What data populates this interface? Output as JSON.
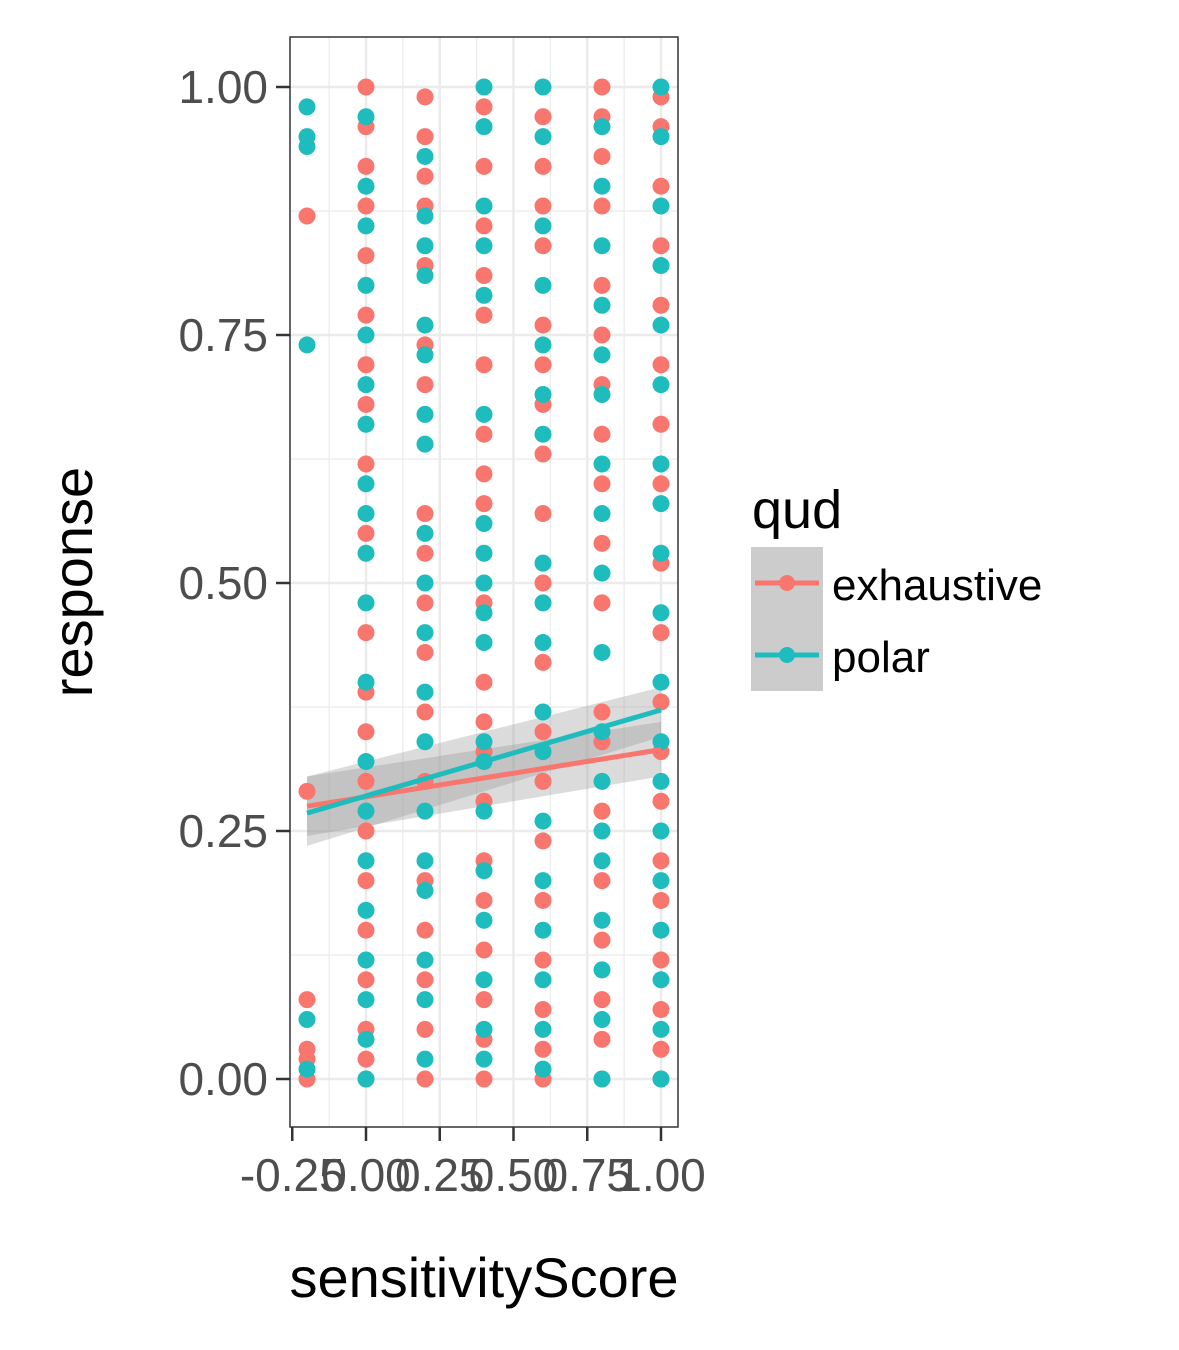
{
  "chart_data": {
    "type": "scatter",
    "title": "",
    "xlabel": "sensitivityScore",
    "ylabel": "response",
    "xlim": [
      -0.26,
      1.05
    ],
    "ylim": [
      -0.05,
      1.05
    ],
    "x_ticks": [
      "-0.25",
      "0.00",
      "0.25",
      "0.50",
      "0.75",
      "1.00"
    ],
    "y_ticks": [
      "0.00",
      "0.25",
      "0.50",
      "0.75",
      "1.00"
    ],
    "grid": true,
    "legend_position": "right",
    "legend": {
      "title": "qud",
      "entries": [
        "exhaustive",
        "polar"
      ]
    },
    "colors": {
      "exhaustive": "#F8766D",
      "polar": "#1FBCBE",
      "band": "#999999",
      "panel_border": "#333333",
      "grid": "#EBEBEB"
    },
    "series": [
      {
        "name": "exhaustive",
        "points": [
          [
            -0.2,
            0.0
          ],
          [
            -0.2,
            0.02
          ],
          [
            -0.2,
            0.03
          ],
          [
            -0.2,
            0.08
          ],
          [
            -0.2,
            0.29
          ],
          [
            -0.2,
            0.87
          ],
          [
            0.0,
            0.0
          ],
          [
            0.0,
            0.02
          ],
          [
            0.0,
            0.05
          ],
          [
            0.0,
            0.1
          ],
          [
            0.0,
            0.15
          ],
          [
            0.0,
            0.2
          ],
          [
            0.0,
            0.25
          ],
          [
            0.0,
            0.3
          ],
          [
            0.0,
            0.35
          ],
          [
            0.0,
            0.39
          ],
          [
            0.0,
            0.45
          ],
          [
            0.0,
            0.55
          ],
          [
            0.0,
            0.62
          ],
          [
            0.0,
            0.68
          ],
          [
            0.0,
            0.72
          ],
          [
            0.0,
            0.77
          ],
          [
            0.0,
            0.83
          ],
          [
            0.0,
            0.88
          ],
          [
            0.0,
            0.92
          ],
          [
            0.0,
            0.96
          ],
          [
            0.0,
            1.0
          ],
          [
            0.2,
            0.0
          ],
          [
            0.2,
            0.05
          ],
          [
            0.2,
            0.1
          ],
          [
            0.2,
            0.15
          ],
          [
            0.2,
            0.2
          ],
          [
            0.2,
            0.3
          ],
          [
            0.2,
            0.37
          ],
          [
            0.2,
            0.43
          ],
          [
            0.2,
            0.48
          ],
          [
            0.2,
            0.53
          ],
          [
            0.2,
            0.57
          ],
          [
            0.2,
            0.7
          ],
          [
            0.2,
            0.74
          ],
          [
            0.2,
            0.82
          ],
          [
            0.2,
            0.88
          ],
          [
            0.2,
            0.91
          ],
          [
            0.2,
            0.95
          ],
          [
            0.2,
            0.99
          ],
          [
            0.4,
            0.0
          ],
          [
            0.4,
            0.04
          ],
          [
            0.4,
            0.08
          ],
          [
            0.4,
            0.13
          ],
          [
            0.4,
            0.18
          ],
          [
            0.4,
            0.22
          ],
          [
            0.4,
            0.28
          ],
          [
            0.4,
            0.33
          ],
          [
            0.4,
            0.36
          ],
          [
            0.4,
            0.4
          ],
          [
            0.4,
            0.48
          ],
          [
            0.4,
            0.58
          ],
          [
            0.4,
            0.61
          ],
          [
            0.4,
            0.65
          ],
          [
            0.4,
            0.72
          ],
          [
            0.4,
            0.77
          ],
          [
            0.4,
            0.81
          ],
          [
            0.4,
            0.86
          ],
          [
            0.4,
            0.92
          ],
          [
            0.4,
            0.98
          ],
          [
            0.6,
            0.0
          ],
          [
            0.6,
            0.03
          ],
          [
            0.6,
            0.07
          ],
          [
            0.6,
            0.12
          ],
          [
            0.6,
            0.18
          ],
          [
            0.6,
            0.24
          ],
          [
            0.6,
            0.3
          ],
          [
            0.6,
            0.35
          ],
          [
            0.6,
            0.42
          ],
          [
            0.6,
            0.5
          ],
          [
            0.6,
            0.57
          ],
          [
            0.6,
            0.63
          ],
          [
            0.6,
            0.68
          ],
          [
            0.6,
            0.72
          ],
          [
            0.6,
            0.76
          ],
          [
            0.6,
            0.84
          ],
          [
            0.6,
            0.88
          ],
          [
            0.6,
            0.92
          ],
          [
            0.6,
            0.97
          ],
          [
            0.8,
            0.0
          ],
          [
            0.8,
            0.04
          ],
          [
            0.8,
            0.08
          ],
          [
            0.8,
            0.14
          ],
          [
            0.8,
            0.2
          ],
          [
            0.8,
            0.27
          ],
          [
            0.8,
            0.34
          ],
          [
            0.8,
            0.37
          ],
          [
            0.8,
            0.48
          ],
          [
            0.8,
            0.54
          ],
          [
            0.8,
            0.6
          ],
          [
            0.8,
            0.65
          ],
          [
            0.8,
            0.7
          ],
          [
            0.8,
            0.75
          ],
          [
            0.8,
            0.8
          ],
          [
            0.8,
            0.88
          ],
          [
            0.8,
            0.93
          ],
          [
            0.8,
            0.97
          ],
          [
            0.8,
            1.0
          ],
          [
            1.0,
            0.0
          ],
          [
            1.0,
            0.03
          ],
          [
            1.0,
            0.07
          ],
          [
            1.0,
            0.12
          ],
          [
            1.0,
            0.18
          ],
          [
            1.0,
            0.22
          ],
          [
            1.0,
            0.28
          ],
          [
            1.0,
            0.33
          ],
          [
            1.0,
            0.38
          ],
          [
            1.0,
            0.45
          ],
          [
            1.0,
            0.52
          ],
          [
            1.0,
            0.6
          ],
          [
            1.0,
            0.66
          ],
          [
            1.0,
            0.72
          ],
          [
            1.0,
            0.78
          ],
          [
            1.0,
            0.84
          ],
          [
            1.0,
            0.9
          ],
          [
            1.0,
            0.96
          ],
          [
            1.0,
            0.99
          ]
        ],
        "trend": {
          "x": [
            -0.2,
            1.0
          ],
          "y": [
            0.275,
            0.332
          ]
        },
        "band": {
          "lower": [
            0.245,
            0.305
          ],
          "upper": [
            0.305,
            0.36
          ]
        }
      },
      {
        "name": "polar",
        "points": [
          [
            -0.2,
            0.01
          ],
          [
            -0.2,
            0.06
          ],
          [
            -0.2,
            0.74
          ],
          [
            -0.2,
            0.94
          ],
          [
            -0.2,
            0.95
          ],
          [
            -0.2,
            0.98
          ],
          [
            0.0,
            0.0
          ],
          [
            0.0,
            0.04
          ],
          [
            0.0,
            0.08
          ],
          [
            0.0,
            0.12
          ],
          [
            0.0,
            0.17
          ],
          [
            0.0,
            0.22
          ],
          [
            0.0,
            0.27
          ],
          [
            0.0,
            0.32
          ],
          [
            0.0,
            0.4
          ],
          [
            0.0,
            0.48
          ],
          [
            0.0,
            0.53
          ],
          [
            0.0,
            0.57
          ],
          [
            0.0,
            0.6
          ],
          [
            0.0,
            0.66
          ],
          [
            0.0,
            0.7
          ],
          [
            0.0,
            0.75
          ],
          [
            0.0,
            0.8
          ],
          [
            0.0,
            0.86
          ],
          [
            0.0,
            0.9
          ],
          [
            0.0,
            0.97
          ],
          [
            0.2,
            0.02
          ],
          [
            0.2,
            0.08
          ],
          [
            0.2,
            0.12
          ],
          [
            0.2,
            0.19
          ],
          [
            0.2,
            0.22
          ],
          [
            0.2,
            0.27
          ],
          [
            0.2,
            0.34
          ],
          [
            0.2,
            0.39
          ],
          [
            0.2,
            0.45
          ],
          [
            0.2,
            0.5
          ],
          [
            0.2,
            0.55
          ],
          [
            0.2,
            0.64
          ],
          [
            0.2,
            0.67
          ],
          [
            0.2,
            0.73
          ],
          [
            0.2,
            0.76
          ],
          [
            0.2,
            0.81
          ],
          [
            0.2,
            0.84
          ],
          [
            0.2,
            0.87
          ],
          [
            0.2,
            0.93
          ],
          [
            0.4,
            0.02
          ],
          [
            0.4,
            0.05
          ],
          [
            0.4,
            0.1
          ],
          [
            0.4,
            0.16
          ],
          [
            0.4,
            0.21
          ],
          [
            0.4,
            0.27
          ],
          [
            0.4,
            0.32
          ],
          [
            0.4,
            0.34
          ],
          [
            0.4,
            0.44
          ],
          [
            0.4,
            0.47
          ],
          [
            0.4,
            0.5
          ],
          [
            0.4,
            0.53
          ],
          [
            0.4,
            0.56
          ],
          [
            0.4,
            0.67
          ],
          [
            0.4,
            0.79
          ],
          [
            0.4,
            0.84
          ],
          [
            0.4,
            0.88
          ],
          [
            0.4,
            0.96
          ],
          [
            0.4,
            1.0
          ],
          [
            0.6,
            0.01
          ],
          [
            0.6,
            0.05
          ],
          [
            0.6,
            0.1
          ],
          [
            0.6,
            0.15
          ],
          [
            0.6,
            0.2
          ],
          [
            0.6,
            0.26
          ],
          [
            0.6,
            0.33
          ],
          [
            0.6,
            0.37
          ],
          [
            0.6,
            0.44
          ],
          [
            0.6,
            0.48
          ],
          [
            0.6,
            0.52
          ],
          [
            0.6,
            0.65
          ],
          [
            0.6,
            0.69
          ],
          [
            0.6,
            0.74
          ],
          [
            0.6,
            0.8
          ],
          [
            0.6,
            0.86
          ],
          [
            0.6,
            0.95
          ],
          [
            0.6,
            1.0
          ],
          [
            0.8,
            0.0
          ],
          [
            0.8,
            0.06
          ],
          [
            0.8,
            0.11
          ],
          [
            0.8,
            0.16
          ],
          [
            0.8,
            0.22
          ],
          [
            0.8,
            0.25
          ],
          [
            0.8,
            0.3
          ],
          [
            0.8,
            0.35
          ],
          [
            0.8,
            0.43
          ],
          [
            0.8,
            0.51
          ],
          [
            0.8,
            0.57
          ],
          [
            0.8,
            0.62
          ],
          [
            0.8,
            0.69
          ],
          [
            0.8,
            0.73
          ],
          [
            0.8,
            0.78
          ],
          [
            0.8,
            0.84
          ],
          [
            0.8,
            0.9
          ],
          [
            0.8,
            0.96
          ],
          [
            1.0,
            0.0
          ],
          [
            1.0,
            0.05
          ],
          [
            1.0,
            0.1
          ],
          [
            1.0,
            0.15
          ],
          [
            1.0,
            0.2
          ],
          [
            1.0,
            0.25
          ],
          [
            1.0,
            0.3
          ],
          [
            1.0,
            0.34
          ],
          [
            1.0,
            0.4
          ],
          [
            1.0,
            0.47
          ],
          [
            1.0,
            0.53
          ],
          [
            1.0,
            0.58
          ],
          [
            1.0,
            0.62
          ],
          [
            1.0,
            0.7
          ],
          [
            1.0,
            0.76
          ],
          [
            1.0,
            0.82
          ],
          [
            1.0,
            0.88
          ],
          [
            1.0,
            0.95
          ],
          [
            1.0,
            1.0
          ]
        ],
        "trend": {
          "x": [
            -0.2,
            1.0
          ],
          "y": [
            0.268,
            0.372
          ]
        },
        "band": {
          "lower": [
            0.235,
            0.345
          ],
          "upper": [
            0.305,
            0.395
          ]
        }
      }
    ]
  }
}
